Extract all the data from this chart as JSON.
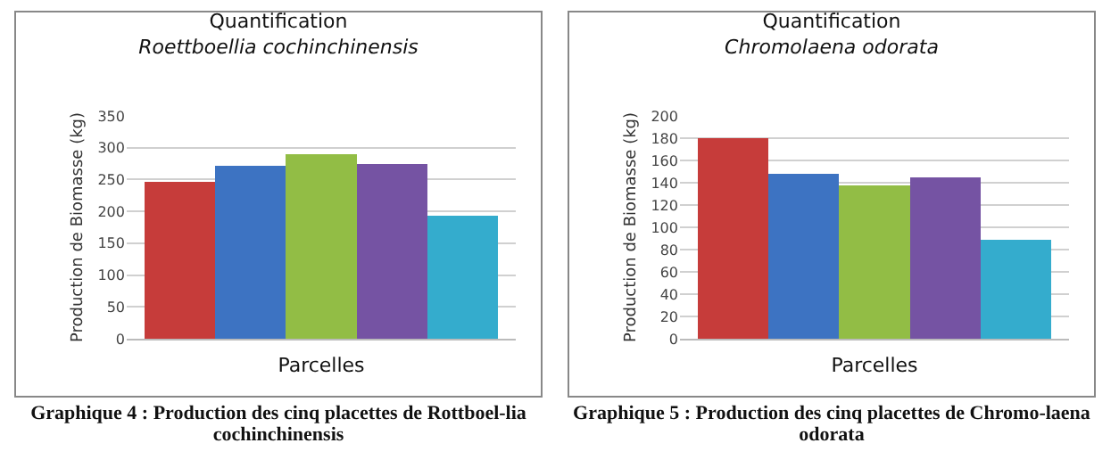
{
  "chart_data": [
    {
      "type": "bar",
      "title": "Quantification",
      "subtitle": "Roettboellia cochinchinensis",
      "xlabel": "Parcelles",
      "ylabel": "Production de Biomasse (kg)",
      "categories": [
        null,
        null,
        null,
        null,
        null
      ],
      "values": [
        247,
        272,
        290,
        275,
        193
      ],
      "colors": [
        "#c63c3a",
        "#3d73c2",
        "#92bd45",
        "#7553a3",
        "#34accd"
      ],
      "ylim": [
        0,
        350
      ],
      "yticks": [
        0,
        50,
        100,
        150,
        200,
        250,
        300,
        350
      ],
      "grid": "y",
      "annotations": [
        "Graphique 4 : Production des cinq placettes de Rottboel-lia cochinchinensis"
      ]
    },
    {
      "type": "bar",
      "title": "Quantification",
      "subtitle": "Chromolaena odorata",
      "xlabel": "Parcelles",
      "ylabel": "Production de Biomasse (kg)",
      "categories": [
        null,
        null,
        null,
        null,
        null
      ],
      "values": [
        180,
        148,
        138,
        145,
        89
      ],
      "colors": [
        "#c63c3a",
        "#3d73c2",
        "#92bd45",
        "#7553a3",
        "#34accd"
      ],
      "ylim": [
        0,
        200
      ],
      "yticks": [
        0,
        20,
        40,
        60,
        80,
        100,
        120,
        140,
        160,
        180,
        200
      ],
      "grid": "y",
      "annotations": [
        "Graphique 5 : Production des cinq placettes de Chromo-laena odorata"
      ]
    }
  ]
}
